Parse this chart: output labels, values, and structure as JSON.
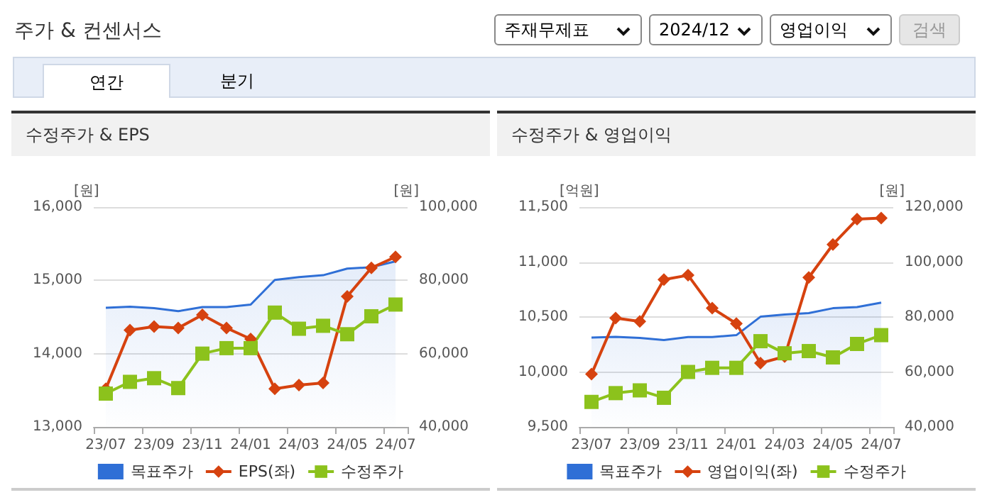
{
  "chart_data": [
    {
      "type": "other",
      "title": "주가 & 컨센서스",
      "annotations": [
        "주재무제표",
        "2024/12",
        "영업이익",
        "검색",
        "연간",
        "분기"
      ]
    },
    {
      "type": "line",
      "title": "수정주가 & EPS",
      "ylabel": "[원]",
      "y2label": "[원]",
      "categories": [
        "23/07",
        null,
        "23/09",
        null,
        "23/11",
        null,
        "24/01",
        null,
        "24/03",
        null,
        "24/05",
        null,
        "24/07"
      ],
      "ylim": [
        13000,
        16000
      ],
      "yticks": [
        {
          "value": 13000,
          "label": "13,000"
        },
        {
          "value": 14000,
          "label": "14,000"
        },
        {
          "value": 15000,
          "label": "15,000"
        },
        {
          "value": 16000,
          "label": "16,000"
        }
      ],
      "y2lim": [
        40000,
        100000
      ],
      "y2ticks": [
        {
          "value": 40000,
          "label": "40,000"
        },
        {
          "value": 60000,
          "label": "60,000"
        },
        {
          "value": 80000,
          "label": "80,000"
        },
        {
          "value": 100000,
          "label": "100,000"
        }
      ],
      "grid": "y",
      "legend": "bottom",
      "series": [
        {
          "name": "목표주가",
          "type": "area",
          "axis": "y2",
          "color": "#2f6fd6",
          "marker": "none",
          "values": [
            72500,
            72800,
            72400,
            71600,
            72700,
            72700,
            73400,
            80100,
            80900,
            81400,
            83200,
            83600,
            85200
          ]
        },
        {
          "name": "EPS(좌)",
          "type": "line",
          "color": "#d6420f",
          "marker": "diamond",
          "values": [
            13520,
            14320,
            14370,
            14350,
            14530,
            14350,
            14200,
            13520,
            13570,
            13600,
            14780,
            15170,
            15320
          ]
        },
        {
          "name": "수정주가",
          "type": "line",
          "axis": "y2",
          "color": "#8cc21c",
          "marker": "square",
          "values": [
            49100,
            52300,
            53300,
            50600,
            60000,
            61500,
            61500,
            71200,
            66800,
            67600,
            65300,
            70200,
            73400
          ]
        }
      ]
    },
    {
      "type": "line",
      "title": "수정주가 & 영업이익",
      "ylabel": "[억원]",
      "y2label": "[원]",
      "categories": [
        "23/07",
        null,
        "23/09",
        null,
        "23/11",
        null,
        "24/01",
        null,
        "24/03",
        null,
        "24/05",
        null,
        "24/07"
      ],
      "ylim": [
        9500,
        11500
      ],
      "yticks": [
        {
          "value": 9500,
          "label": "9,500"
        },
        {
          "value": 10000,
          "label": "10,000"
        },
        {
          "value": 10500,
          "label": "10,500"
        },
        {
          "value": 11000,
          "label": "11,000"
        },
        {
          "value": 11500,
          "label": "11,500"
        }
      ],
      "y2lim": [
        40000,
        120000
      ],
      "y2ticks": [
        {
          "value": 40000,
          "label": "40,000"
        },
        {
          "value": 60000,
          "label": "60,000"
        },
        {
          "value": 80000,
          "label": "80,000"
        },
        {
          "value": 100000,
          "label": "100,000"
        },
        {
          "value": 120000,
          "label": "120,000"
        }
      ],
      "grid": "y",
      "legend": "bottom",
      "series": [
        {
          "name": "목표주가",
          "type": "area",
          "axis": "y2",
          "color": "#2f6fd6",
          "marker": "none",
          "values": [
            72500,
            72800,
            72400,
            71600,
            72700,
            72700,
            73400,
            80100,
            80900,
            81400,
            83200,
            83600,
            85200
          ]
        },
        {
          "name": "영업이익(좌)",
          "type": "line",
          "color": "#d6420f",
          "marker": "diamond",
          "values": [
            9980,
            10490,
            10460,
            10840,
            10880,
            10580,
            10440,
            10080,
            10140,
            10860,
            11160,
            11390,
            11400
          ]
        },
        {
          "name": "수정주가",
          "type": "line",
          "axis": "y2",
          "color": "#8cc21c",
          "marker": "square",
          "values": [
            49100,
            52300,
            53300,
            50600,
            60000,
            61500,
            61500,
            71200,
            66800,
            67600,
            65300,
            70200,
            73400
          ]
        }
      ]
    }
  ]
}
